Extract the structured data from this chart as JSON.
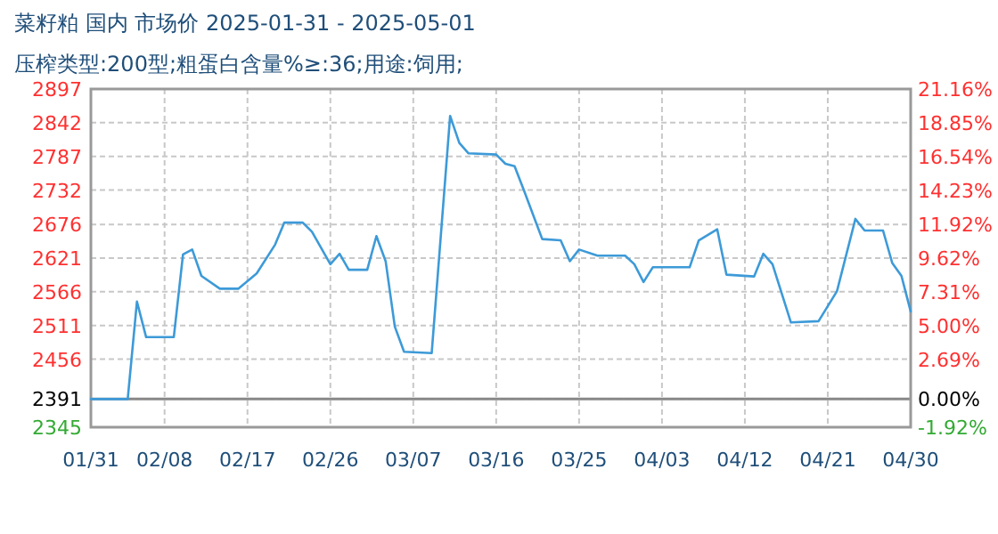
{
  "chart_data": {
    "type": "line",
    "title": "菜籽粕 国内 市场价 2025-01-31 - 2025-05-01",
    "subtitle": "压榨类型:200型;粗蛋白含量%≥:36;用途:饲用;",
    "x": [
      "2025-01-31",
      "2025-02-04",
      "2025-02-05",
      "2025-02-06",
      "2025-02-09",
      "2025-02-10",
      "2025-02-11",
      "2025-02-12",
      "2025-02-14",
      "2025-02-16",
      "2025-02-18",
      "2025-02-20",
      "2025-02-21",
      "2025-02-23",
      "2025-02-24",
      "2025-02-26",
      "2025-02-27",
      "2025-02-28",
      "2025-03-02",
      "2025-03-03",
      "2025-03-04",
      "2025-03-05",
      "2025-03-06",
      "2025-03-09",
      "2025-03-11",
      "2025-03-12",
      "2025-03-13",
      "2025-03-16",
      "2025-03-17",
      "2025-03-18",
      "2025-03-19",
      "2025-03-21",
      "2025-03-23",
      "2025-03-24",
      "2025-03-25",
      "2025-03-27",
      "2025-03-30",
      "2025-03-31",
      "2025-04-01",
      "2025-04-02",
      "2025-04-06",
      "2025-04-07",
      "2025-04-09",
      "2025-04-10",
      "2025-04-13",
      "2025-04-14",
      "2025-04-15",
      "2025-04-17",
      "2025-04-20",
      "2025-04-22",
      "2025-04-24",
      "2025-04-25",
      "2025-04-27",
      "2025-04-28",
      "2025-04-29",
      "2025-04-30"
    ],
    "series": [
      {
        "color": "#3d9ad8",
        "values": [
          2391,
          2391,
          2550,
          2492,
          2492,
          2627,
          2635,
          2592,
          2571,
          2571,
          2596,
          2643,
          2679,
          2679,
          2664,
          2611,
          2628,
          2602,
          2602,
          2657,
          2616,
          2509,
          2468,
          2466,
          2853,
          2809,
          2792,
          2790,
          2775,
          2771,
          2732,
          2652,
          2650,
          2616,
          2635,
          2625,
          2625,
          2611,
          2582,
          2606,
          2606,
          2650,
          2668,
          2594,
          2591,
          2628,
          2611,
          2516,
          2518,
          2567,
          2685,
          2666,
          2666,
          2613,
          2592,
          2534
        ]
      }
    ],
    "xlim": [
      "2025-01-31",
      "2025-04-30"
    ],
    "xticks": [
      {
        "value": "2025-01-31",
        "label": "01/31"
      },
      {
        "value": "2025-02-08",
        "label": "02/08"
      },
      {
        "value": "2025-02-17",
        "label": "02/17"
      },
      {
        "value": "2025-02-26",
        "label": "02/26"
      },
      {
        "value": "2025-03-07",
        "label": "03/07"
      },
      {
        "value": "2025-03-16",
        "label": "03/16"
      },
      {
        "value": "2025-03-25",
        "label": "03/25"
      },
      {
        "value": "2025-04-03",
        "label": "04/03"
      },
      {
        "value": "2025-04-12",
        "label": "04/12"
      },
      {
        "value": "2025-04-21",
        "label": "04/21"
      },
      {
        "value": "2025-04-30",
        "label": "04/30"
      }
    ],
    "ylim": [
      2345,
      2897
    ],
    "yticks": [
      2345,
      2391,
      2456,
      2511,
      2566,
      2621,
      2676,
      2732,
      2787,
      2842,
      2897
    ],
    "y2lim": [
      -1.92,
      21.16
    ],
    "y2ticks": [
      {
        "value": -1.92,
        "label": "-1.92%"
      },
      {
        "value": 0,
        "label": "0.00%"
      },
      {
        "value": 2.69,
        "label": "2.69%"
      },
      {
        "value": 5.0,
        "label": "5.00%"
      },
      {
        "value": 7.31,
        "label": "7.31%"
      },
      {
        "value": 9.62,
        "label": "9.62%"
      },
      {
        "value": 11.92,
        "label": "11.92%"
      },
      {
        "value": 14.23,
        "label": "14.23%"
      },
      {
        "value": 16.54,
        "label": "16.54%"
      },
      {
        "value": 18.85,
        "label": "18.85%"
      },
      {
        "value": 21.16,
        "label": "21.16%"
      }
    ],
    "ref_lines": [
      {
        "axis": "y",
        "value": 2391,
        "color": "#888888"
      }
    ],
    "grid": true,
    "marker": "none",
    "line_style": "solid"
  }
}
